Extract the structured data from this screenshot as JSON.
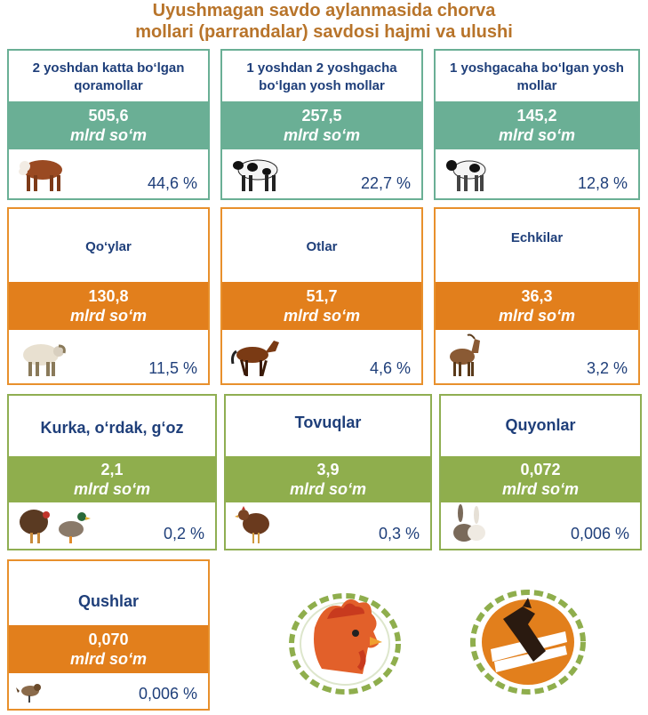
{
  "title_line1": "Uyushmagan savdo aylanmasida chorva",
  "title_line2": "mollari (parrandalar) savdosi hajmi va ulushi",
  "unit": "mlrd so‘m",
  "colors": {
    "teal": "#6aaf95",
    "orange": "#e27f1c",
    "green": "#8fae4d",
    "title": "#b8742a",
    "text": "#1f3f7a"
  },
  "cards": [
    {
      "name": "2 yoshdan katta bo‘lgan qoramollar",
      "value": "505,6",
      "percent": "44,6 %",
      "icon": "bull-icon"
    },
    {
      "name": "1 yoshdan 2 yoshgacha bo‘lgan yosh mollar",
      "value": "257,5",
      "percent": "22,7 %",
      "icon": "cow-icon"
    },
    {
      "name": "1 yoshgacaha bo‘lgan yosh mollar",
      "value": "145,2",
      "percent": "12,8 %",
      "icon": "calf-icon"
    },
    {
      "name": "Qo‘ylar",
      "value": "130,8",
      "percent": "11,5 %",
      "icon": "sheep-icon"
    },
    {
      "name": "Otlar",
      "value": "51,7",
      "percent": "4,6 %",
      "icon": "horse-icon"
    },
    {
      "name": "Echkilar",
      "value": "36,3",
      "percent": "3,2 %",
      "icon": "goat-icon"
    },
    {
      "name": "Kurka, o‘rdak, g‘oz",
      "value": "2,1",
      "percent": "0,2 %",
      "icon": "turkey-duck-icon"
    },
    {
      "name": "Tovuqlar",
      "value": "3,9",
      "percent": "0,3 %",
      "icon": "hen-icon"
    },
    {
      "name": "Quyonlar",
      "value": "0,072",
      "percent": "0,006 %",
      "icon": "rabbit-icon"
    },
    {
      "name": "Qushlar",
      "value": "0,070",
      "percent": "0,006 %",
      "icon": "sparrow-icon"
    }
  ],
  "logos": [
    "rooster-logo-icon",
    "cow-logo-icon"
  ]
}
